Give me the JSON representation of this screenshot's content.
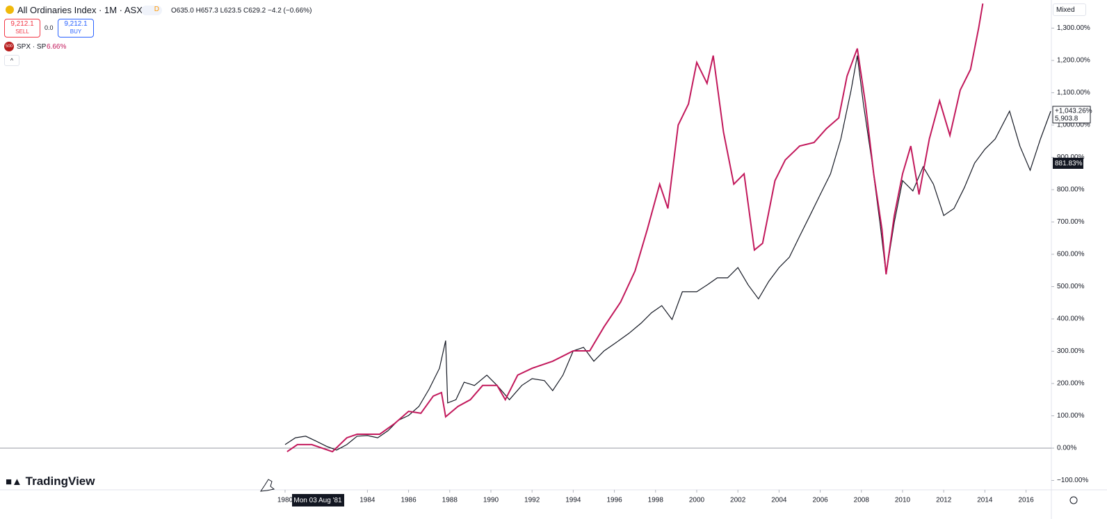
{
  "header": {
    "symbol": "All Ordinaries Index · 1M · ASX",
    "badge": "D",
    "open": "O635.0",
    "high": "H657.3",
    "low": "L623.5",
    "close": "C629.2",
    "change": "−4.2 (−0.66%)"
  },
  "trade": {
    "sell_price": "9,212.1",
    "sell_label": "SELL",
    "spread": "0.0",
    "buy_price": "9,212.1",
    "buy_label": "BUY"
  },
  "compare": {
    "icon": "500",
    "change": "6.66%"
  },
  "toolbar": {
    "scale_mode": "Mixed",
    "logo": "TradingView",
    "crosshair_date": "Mon 03 Aug '81"
  },
  "last_labels": {
    "main_percent": "+1,043.26%",
    "main_price": "5,903.8",
    "compare_percent": "881.83%"
  },
  "chart_data": {
    "type": "line",
    "xlim": [
      1966.15,
      2017.23
    ],
    "xticks": [
      1980,
      1984,
      1986,
      1988,
      1990,
      1992,
      1994,
      1996,
      1998,
      2000,
      2002,
      2004,
      2006,
      2008,
      2010,
      2012,
      2014,
      2016
    ],
    "ylim": [
      -129,
      1387
    ],
    "yticks": [
      {
        "value": -100,
        "label": "−100.00%"
      },
      {
        "value": 0,
        "label": "0.00%"
      },
      {
        "value": 100,
        "label": "100.00%"
      },
      {
        "value": 200,
        "label": "200.00%"
      },
      {
        "value": 300,
        "label": "300.00%"
      },
      {
        "value": 400,
        "label": "400.00%"
      },
      {
        "value": 500,
        "label": "500.00%"
      },
      {
        "value": 600,
        "label": "600.00%"
      },
      {
        "value": 700,
        "label": "700.00%"
      },
      {
        "value": 800,
        "label": "800.00%"
      },
      {
        "value": 900,
        "label": "900.00%"
      },
      {
        "value": 1000,
        "label": "1,000.00%"
      },
      {
        "value": 1100,
        "label": "1,100.00%"
      },
      {
        "value": 1200,
        "label": "1,200.00%"
      },
      {
        "value": 1300,
        "label": "1,300.00%"
      }
    ],
    "series": [
      {
        "name": "All Ordinaries Index · 1M · ASX",
        "color": "#131722",
        "x": [
          1980.0,
          1980.5,
          1981.0,
          1981.5,
          1982.0,
          1982.5,
          1983.0,
          1983.5,
          1984.0,
          1984.5,
          1985.0,
          1985.5,
          1986.0,
          1986.5,
          1987.0,
          1987.5,
          1987.8,
          1987.9,
          1988.3,
          1988.7,
          1989.2,
          1989.8,
          1990.3,
          1990.9,
          1991.5,
          1992.0,
          1992.6,
          1993.0,
          1993.5,
          1994.0,
          1994.5,
          1995.0,
          1995.5,
          1996.0,
          1996.7,
          1997.3,
          1997.8,
          1998.3,
          1998.8,
          1999.3,
          2000.0,
          2000.5,
          2001.0,
          2001.5,
          2002.0,
          2002.5,
          2003.0,
          2003.5,
          2004.0,
          2004.5,
          2005.0,
          2005.5,
          2006.0,
          2006.5,
          2007.0,
          2007.5,
          2007.8,
          2008.1,
          2008.5,
          2008.9,
          2009.2,
          2009.6,
          2010.0,
          2010.5,
          2011.0,
          2011.5,
          2012.0,
          2012.5,
          2013.0,
          2013.5,
          2014.0,
          2014.5,
          2015.2,
          2015.7,
          2016.2,
          2016.7,
          2017.2
        ],
        "values": [
          11,
          32,
          37,
          22,
          6,
          -6,
          11,
          37,
          39,
          32,
          54,
          86,
          101,
          129,
          183,
          247,
          333,
          140,
          150,
          204,
          194,
          226,
          194,
          150,
          194,
          215,
          209,
          178,
          226,
          301,
          312,
          269,
          301,
          323,
          355,
          387,
          419,
          441,
          398,
          484,
          484,
          505,
          527,
          527,
          559,
          505,
          462,
          516,
          559,
          591,
          656,
          720,
          785,
          849,
          957,
          1108,
          1215,
          1065,
          892,
          699,
          538,
          699,
          828,
          796,
          871,
          817,
          720,
          742,
          806,
          882,
          925,
          957,
          1043,
          935,
          860,
          957,
          1043
        ]
      },
      {
        "name": "SPX · SP",
        "color": "#c2185b",
        "x": [
          1980.1,
          1980.6,
          1981.3,
          1982.3,
          1983.0,
          1983.5,
          1984.0,
          1984.6,
          1985.3,
          1986.0,
          1986.6,
          1987.2,
          1987.6,
          1987.8,
          1988.4,
          1989.0,
          1989.6,
          1990.3,
          1990.7,
          1991.3,
          1992.0,
          1993.0,
          1994.0,
          1994.8,
          1995.5,
          1996.3,
          1997.0,
          1997.6,
          1998.2,
          1998.6,
          1999.1,
          1999.6,
          2000.0,
          2000.5,
          2000.8,
          2001.3,
          2001.8,
          2002.3,
          2002.8,
          2003.2,
          2003.8,
          2004.3,
          2005.0,
          2005.7,
          2006.3,
          2006.9,
          2007.3,
          2007.8,
          2008.2,
          2008.6,
          2009.0,
          2009.2,
          2009.6,
          2010.0,
          2010.4,
          2010.8,
          2011.3,
          2011.8,
          2012.3,
          2012.8,
          2013.3,
          2013.7,
          2013.9
        ],
        "values": [
          -11,
          11,
          11,
          -11,
          32,
          43,
          43,
          43,
          75,
          114,
          108,
          161,
          172,
          97,
          129,
          150,
          194,
          194,
          150,
          226,
          247,
          269,
          301,
          301,
          376,
          452,
          548,
          677,
          817,
          742,
          1000,
          1065,
          1194,
          1129,
          1215,
          978,
          817,
          849,
          613,
          634,
          828,
          892,
          935,
          946,
          989,
          1022,
          1151,
          1237,
          1065,
          849,
          677,
          538,
          720,
          849,
          935,
          785,
          957,
          1075,
          968,
          1108,
          1172,
          1301,
          1376
        ]
      }
    ]
  }
}
